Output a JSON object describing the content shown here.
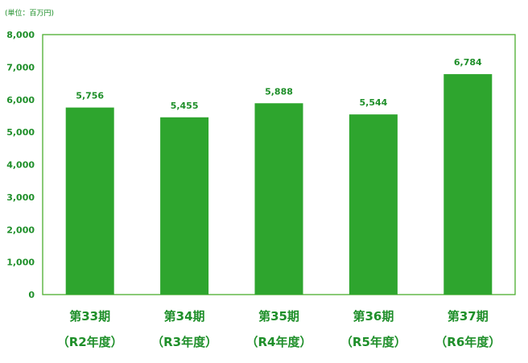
{
  "chart_data": {
    "type": "bar",
    "unit_note": "(単位：百万円)",
    "categories": [
      {
        "line1": "第33期",
        "line2": "（R2年度）"
      },
      {
        "line1": "第34期",
        "line2": "（R3年度）"
      },
      {
        "line1": "第35期",
        "line2": "（R4年度）"
      },
      {
        "line1": "第36期",
        "line2": "（R5年度）"
      },
      {
        "line1": "第37期",
        "line2": "（R6年度）"
      }
    ],
    "values": [
      5756,
      5455,
      5888,
      5544,
      6784
    ],
    "value_labels": [
      "5,756",
      "5,455",
      "5,888",
      "5,544",
      "6,784"
    ],
    "ylim": [
      0,
      8000
    ],
    "yticks": [
      0,
      1000,
      2000,
      3000,
      4000,
      5000,
      6000,
      7000,
      8000
    ],
    "ytick_labels": [
      "0",
      "1,000",
      "2,000",
      "3,000",
      "4,000",
      "5,000",
      "6,000",
      "7,000",
      "8,000"
    ],
    "grid": false,
    "colors": {
      "bar": "#2ea52e",
      "frame": "#4cae2e",
      "text": "#1f8f2a"
    }
  }
}
